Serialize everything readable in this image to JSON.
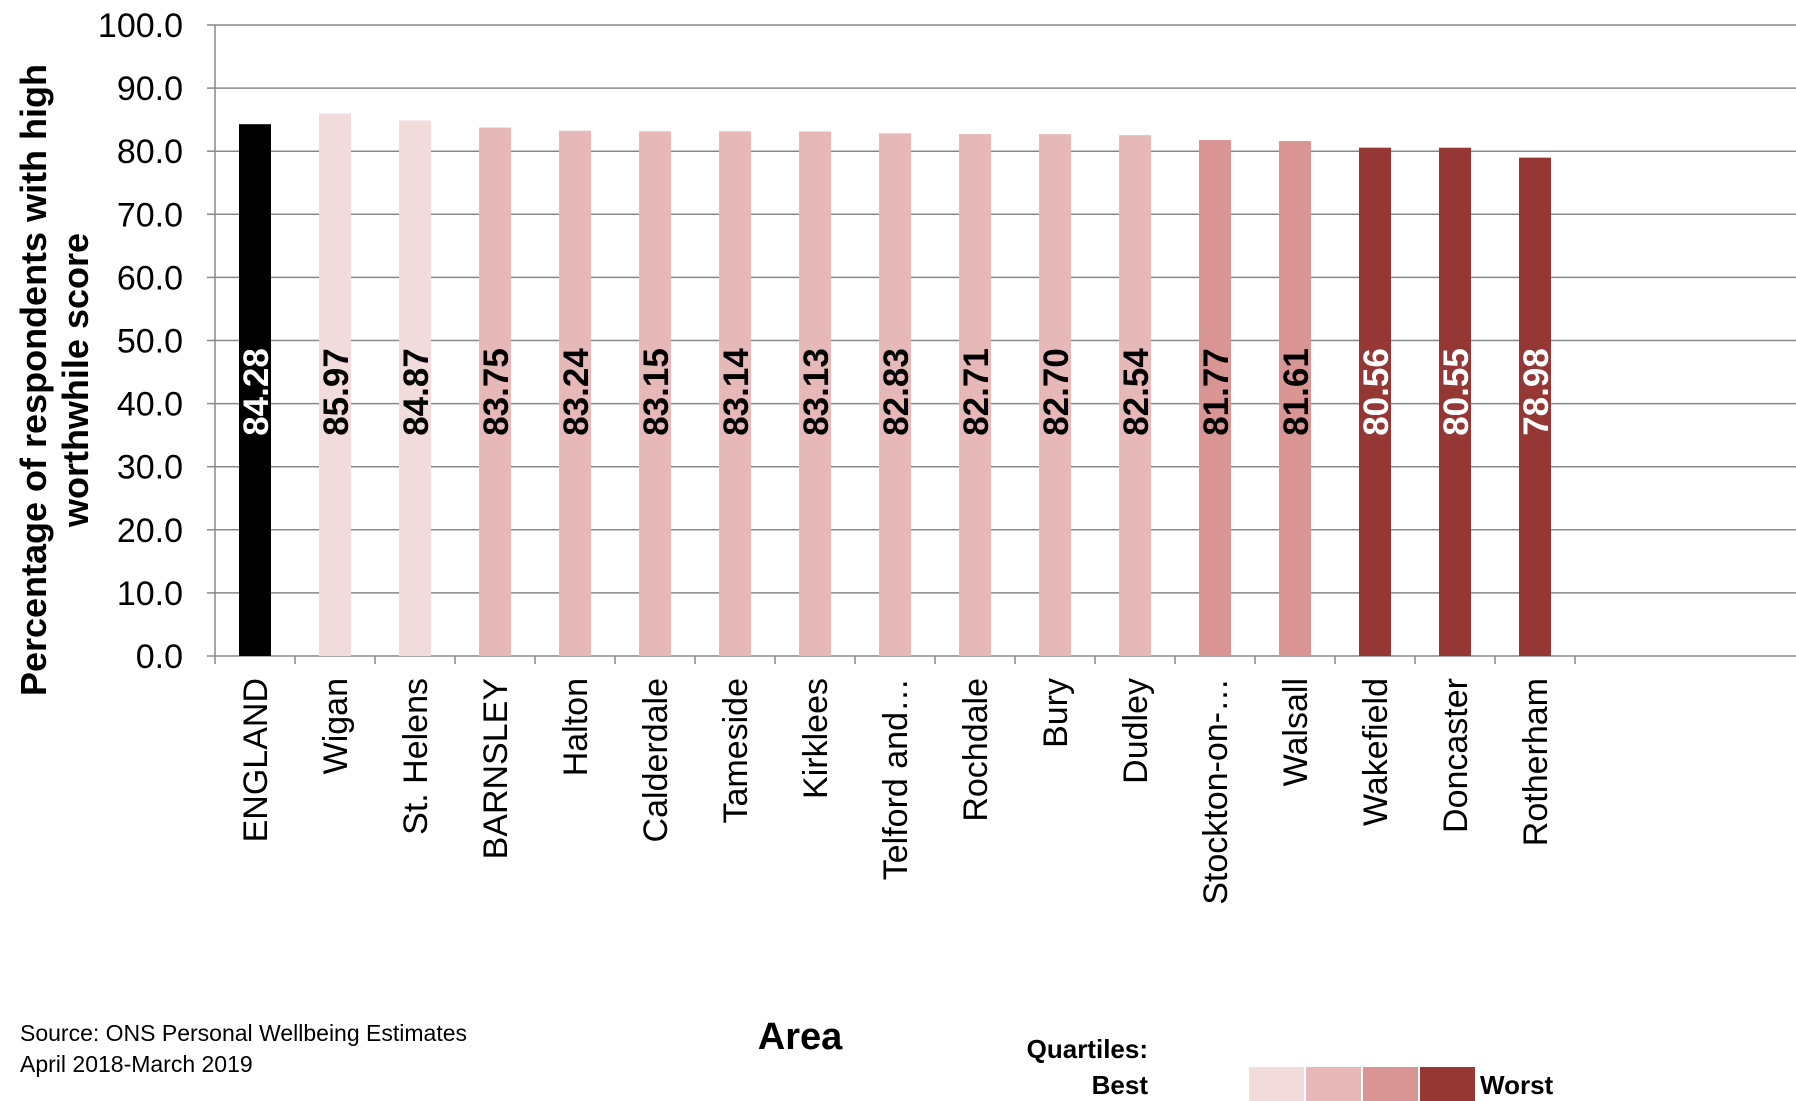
{
  "chart_data": {
    "type": "bar",
    "ylabel": "Percentage of respondents with high worthwhile score",
    "xlabel": "Area",
    "ylim": [
      0,
      100
    ],
    "yticks": [
      "0.0",
      "10.0",
      "20.0",
      "30.0",
      "40.0",
      "50.0",
      "60.0",
      "70.0",
      "80.0",
      "90.0",
      "100.0"
    ],
    "grid": true,
    "categories": [
      "ENGLAND",
      "Wigan",
      "St. Helens",
      "BARNSLEY",
      "Halton",
      "Calderdale",
      "Tameside",
      "Kirklees",
      "Telford and…",
      "Rochdale",
      "Bury",
      "Dudley",
      "Stockton-on-…",
      "Walsall",
      "Wakefield",
      "Doncaster",
      "Rotherham"
    ],
    "values": [
      84.28,
      85.97,
      84.87,
      83.75,
      83.24,
      83.15,
      83.14,
      83.13,
      82.83,
      82.71,
      82.7,
      82.54,
      81.77,
      81.61,
      80.56,
      80.55,
      78.98
    ],
    "data_labels": [
      "84.28",
      "85.97",
      "84.87",
      "83.75",
      "83.24",
      "83.15",
      "83.14",
      "83.13",
      "82.83",
      "82.71",
      "82.70",
      "82.54",
      "81.77",
      "81.61",
      "80.56",
      "80.55",
      "78.98"
    ],
    "quartile": [
      "england",
      1,
      1,
      2,
      2,
      2,
      2,
      2,
      2,
      2,
      2,
      2,
      3,
      3,
      4,
      4,
      4
    ],
    "colors": {
      "england": "#000000",
      "q1": "#F2DCDB",
      "q2": "#E6B9B8",
      "q3": "#D99594",
      "q4": "#953735",
      "grid": "#888888"
    }
  },
  "source": {
    "line1": "Source: ONS Personal Wellbeing Estimates",
    "line2": "April 2018-March 2019"
  },
  "legend": {
    "title": "Quartiles:",
    "best": "Best",
    "worst": "Worst"
  }
}
